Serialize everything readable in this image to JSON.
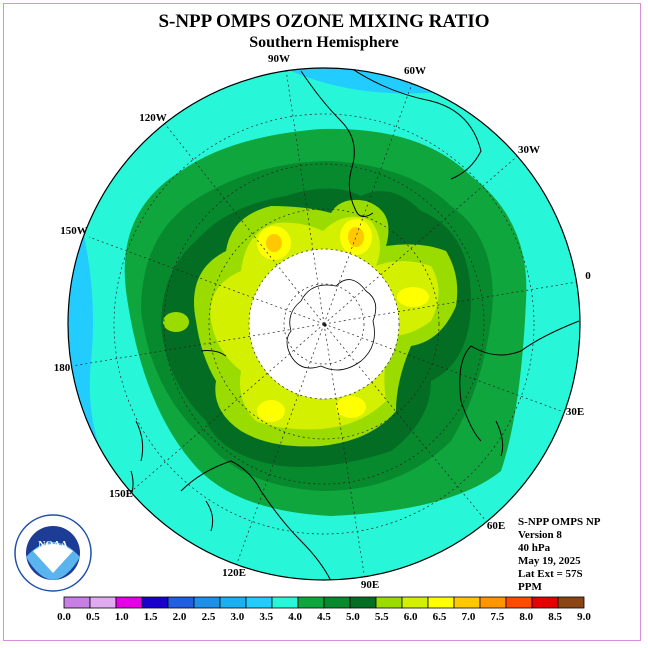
{
  "title": "S-NPP OMPS OZONE MIXING RATIO",
  "subtitle": "Southern Hemisphere",
  "longitude_labels": {
    "w90": "90W",
    "w60": "60W",
    "w30": "30W",
    "w120": "120W",
    "w150": "150W",
    "e0": "0",
    "w180": "180",
    "e30": "30E",
    "e60": "60E",
    "e90": "90E",
    "e120": "120E",
    "e150": "150E"
  },
  "info": {
    "line1": "S-NPP OMPS NP",
    "line2": "Version 8",
    "line3": "40 hPa",
    "line4": "May 19, 2025",
    "line5": "Lat Ext = 57S",
    "line6": "PPM"
  },
  "logo": {
    "text": "NOAA"
  },
  "colorbar": {
    "ticks": [
      "0.0",
      "0.5",
      "1.0",
      "1.5",
      "2.0",
      "2.5",
      "3.0",
      "3.5",
      "4.0",
      "4.5",
      "5.0",
      "5.5",
      "6.0",
      "6.5",
      "7.0",
      "7.5",
      "8.0",
      "8.5",
      "9.0"
    ],
    "colors": [
      "#c77fe6",
      "#dfaaf0",
      "#e600e6",
      "#1a00cc",
      "#1f5fe0",
      "#1e90e8",
      "#1bb0f0",
      "#22ccff",
      "#27f7d8",
      "#0fa63e",
      "#068a2d",
      "#036d23",
      "#9bdc00",
      "#d2f000",
      "#ffff00",
      "#ffc800",
      "#ff9600",
      "#ff4b00",
      "#e60000",
      "#8b4513"
    ]
  },
  "chart_data": {
    "type": "heatmap",
    "projection": "south-polar-stereographic",
    "variable": "Ozone mixing ratio (PPM) at 40 hPa",
    "latitude_extent": -57,
    "date": "May 19, 2025",
    "value_range": [
      0.0,
      9.0
    ],
    "features": [
      {
        "region": "outer-ring (mid-latitudes)",
        "approx_value": 3.5
      },
      {
        "region": "poleward-ring",
        "approx_value": 4.5
      },
      {
        "region": "polar-vortex-edge",
        "approx_value": 5.5
      },
      {
        "region": "local-maxima near 75W and 110W",
        "approx_value": 6.5
      },
      {
        "region": "southern-Pacific/Tasman lows",
        "approx_value": 3.0
      }
    ]
  }
}
